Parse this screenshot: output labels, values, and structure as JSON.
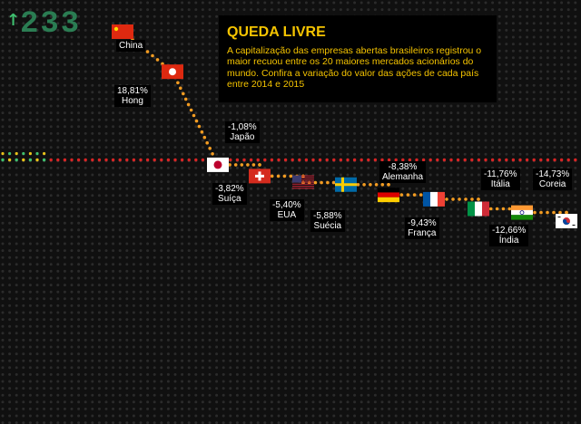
{
  "header": {
    "title": "QUEDA LIVRE",
    "description": "A capitalização das empresas abertas brasileiros registrou o maior recuou entre os 20 maiores mercados acionários do mundo. Confira a variação do valor das ações de cada país entre 2014 e 2015"
  },
  "top_value": "233",
  "colors": {
    "background": "#101010",
    "dot_off": "#2b2b2b",
    "path": "#f39c22",
    "baseline": "#d92525",
    "title": "#f5c400",
    "accent_green": "#3fbf6f"
  },
  "chart_data": {
    "type": "line",
    "title": "QUEDA LIVRE",
    "xlabel": "",
    "ylabel": "",
    "points": [
      {
        "country": "China",
        "value": null,
        "label": ""
      },
      {
        "country": "Hong",
        "value": 18.81,
        "label": "18,81%"
      },
      {
        "country": "Japão",
        "value": -1.08,
        "label": "-1,08%"
      },
      {
        "country": "Suíça",
        "value": -3.82,
        "label": "-3,82%"
      },
      {
        "country": "EUA",
        "value": -5.4,
        "label": "-5,40%"
      },
      {
        "country": "Suécia",
        "value": -5.88,
        "label": "-5,88%"
      },
      {
        "country": "Alemanha",
        "value": -8.38,
        "label": "-8,38%"
      },
      {
        "country": "França",
        "value": -9.43,
        "label": "-9,43%"
      },
      {
        "country": "Itália",
        "value": -11.76,
        "label": "-11,76%"
      },
      {
        "country": "Índia",
        "value": -12.66,
        "label": "-12,66%"
      },
      {
        "country": "Coreia",
        "value": -14.73,
        "label": "-14,73%"
      }
    ],
    "baseline_value": 0,
    "grid": true,
    "legend": "none"
  }
}
